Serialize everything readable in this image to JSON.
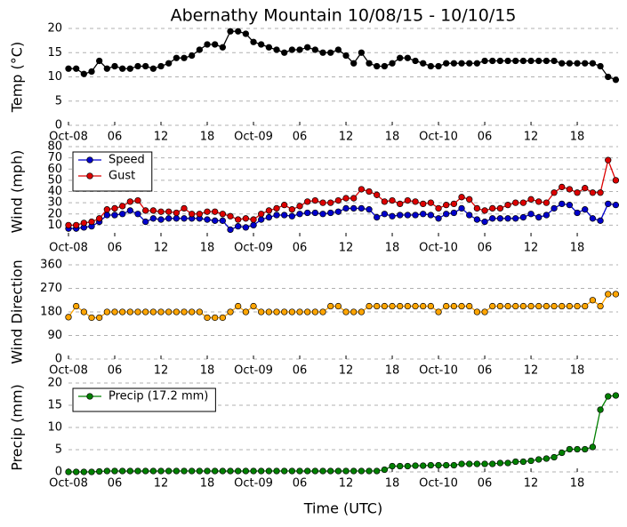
{
  "chart_data": [
    {
      "type": "line",
      "title": "Abernathy Mountain 10/08/15 - 10/10/15",
      "ylabel": "Temp (°C)",
      "x": [
        0,
        1,
        2,
        3,
        4,
        5,
        6,
        7,
        8,
        9,
        10,
        11,
        12,
        13,
        14,
        15,
        16,
        17,
        18,
        19,
        20,
        21,
        22,
        23,
        24,
        25,
        26,
        27,
        28,
        29,
        30,
        31,
        32,
        33,
        34,
        35,
        36,
        37,
        38,
        39,
        40,
        41,
        42,
        43,
        44,
        45,
        46,
        47,
        48,
        49,
        50,
        51,
        52,
        53,
        54,
        55,
        56,
        57,
        58,
        59,
        60,
        61,
        62,
        63,
        64,
        65,
        66,
        67,
        68,
        69,
        70,
        71
      ],
      "xlim": [
        0,
        71.3
      ],
      "xticks": [
        {
          "value": 0,
          "label": "Oct-08"
        },
        {
          "value": 6,
          "label": "06"
        },
        {
          "value": 12,
          "label": "12"
        },
        {
          "value": 18,
          "label": "18"
        },
        {
          "value": 24,
          "label": "Oct-09"
        },
        {
          "value": 30,
          "label": "06"
        },
        {
          "value": 36,
          "label": "12"
        },
        {
          "value": 42,
          "label": "18"
        },
        {
          "value": 48,
          "label": "Oct-10"
        },
        {
          "value": 54,
          "label": "06"
        },
        {
          "value": 60,
          "label": "12"
        },
        {
          "value": 66,
          "label": "18"
        }
      ],
      "ylim": [
        0,
        20
      ],
      "yticks": [
        0,
        5,
        10,
        15,
        20
      ],
      "grid": true,
      "series": [
        {
          "color": "#000000",
          "values": [
            11.7,
            11.7,
            10.6,
            11.1,
            13.3,
            11.7,
            12.2,
            11.7,
            11.7,
            12.2,
            12.2,
            11.7,
            12.2,
            12.8,
            13.9,
            13.9,
            14.4,
            15.6,
            16.7,
            16.7,
            16.1,
            19.4,
            19.4,
            18.9,
            17.2,
            16.7,
            16.1,
            15.6,
            15.0,
            15.6,
            15.6,
            16.1,
            15.6,
            15.0,
            15.0,
            15.6,
            14.4,
            12.8,
            15.0,
            12.8,
            12.2,
            12.2,
            12.8,
            13.9,
            13.9,
            13.3,
            12.8,
            12.2,
            12.2,
            12.8,
            12.8,
            12.8,
            12.8,
            12.8,
            13.3,
            13.3,
            13.3,
            13.3,
            13.3,
            13.3,
            13.3,
            13.3,
            13.3,
            13.3,
            12.8,
            12.8,
            12.8,
            12.8,
            12.8,
            12.2,
            10.0,
            9.4
          ]
        }
      ]
    },
    {
      "type": "line",
      "ylabel": "Wind (mph)",
      "legend": "upper left",
      "x": [
        0,
        1,
        2,
        3,
        4,
        5,
        6,
        7,
        8,
        9,
        10,
        11,
        12,
        13,
        14,
        15,
        16,
        17,
        18,
        19,
        20,
        21,
        22,
        23,
        24,
        25,
        26,
        27,
        28,
        29,
        30,
        31,
        32,
        33,
        34,
        35,
        36,
        37,
        38,
        39,
        40,
        41,
        42,
        43,
        44,
        45,
        46,
        47,
        48,
        49,
        50,
        51,
        52,
        53,
        54,
        55,
        56,
        57,
        58,
        59,
        60,
        61,
        62,
        63,
        64,
        65,
        66,
        67,
        68,
        69,
        70,
        71
      ],
      "xlim": [
        0,
        71.3
      ],
      "xticks": [
        {
          "value": 0,
          "label": "Oct-08"
        },
        {
          "value": 6,
          "label": "06"
        },
        {
          "value": 12,
          "label": "12"
        },
        {
          "value": 18,
          "label": "18"
        },
        {
          "value": 24,
          "label": "Oct-09"
        },
        {
          "value": 30,
          "label": "06"
        },
        {
          "value": 36,
          "label": "12"
        },
        {
          "value": 42,
          "label": "18"
        },
        {
          "value": 48,
          "label": "Oct-10"
        },
        {
          "value": 54,
          "label": "06"
        },
        {
          "value": 60,
          "label": "12"
        },
        {
          "value": 66,
          "label": "18"
        }
      ],
      "ylim": [
        0,
        80
      ],
      "yticks": [
        10,
        20,
        30,
        40,
        50,
        60,
        70,
        80
      ],
      "grid": true,
      "series": [
        {
          "name": "Speed",
          "color": "#0000cc",
          "values": [
            7,
            7,
            8,
            9,
            13,
            19,
            19,
            20,
            23,
            20,
            13,
            16,
            15,
            16,
            16,
            16,
            16,
            16,
            15,
            14,
            14,
            6,
            9,
            8,
            10,
            15,
            17,
            19,
            19,
            18,
            20,
            21,
            21,
            20,
            21,
            22,
            25,
            25,
            25,
            24,
            17,
            20,
            18,
            19,
            19,
            19,
            20,
            19,
            16,
            20,
            21,
            25,
            19,
            15,
            13,
            16,
            16,
            16,
            16,
            17,
            20,
            17,
            19,
            25,
            29,
            28,
            21,
            24,
            16,
            14,
            29,
            28
          ]
        },
        {
          "name": "Gust",
          "color": "#dd0000",
          "values": [
            10,
            10,
            12,
            13,
            16,
            24,
            25,
            27,
            31,
            32,
            23,
            23,
            22,
            22,
            21,
            25,
            20,
            20,
            22,
            22,
            20,
            18,
            15,
            16,
            15,
            20,
            23,
            25,
            28,
            24,
            27,
            31,
            32,
            30,
            30,
            32,
            34,
            34,
            42,
            40,
            37,
            31,
            32,
            29,
            32,
            31,
            29,
            30,
            25,
            28,
            29,
            35,
            33,
            25,
            23,
            25,
            25,
            28,
            30,
            30,
            33,
            31,
            30,
            39,
            44,
            42,
            39,
            43,
            39,
            39,
            68,
            50
          ]
        }
      ]
    },
    {
      "type": "line",
      "ylabel": "Wind Direction",
      "x": [
        0,
        1,
        2,
        3,
        4,
        5,
        6,
        7,
        8,
        9,
        10,
        11,
        12,
        13,
        14,
        15,
        16,
        17,
        18,
        19,
        20,
        21,
        22,
        23,
        24,
        25,
        26,
        27,
        28,
        29,
        30,
        31,
        32,
        33,
        34,
        35,
        36,
        37,
        38,
        39,
        40,
        41,
        42,
        43,
        44,
        45,
        46,
        47,
        48,
        49,
        50,
        51,
        52,
        53,
        54,
        55,
        56,
        57,
        58,
        59,
        60,
        61,
        62,
        63,
        64,
        65,
        66,
        67,
        68,
        69,
        70,
        71
      ],
      "xlim": [
        0,
        71.3
      ],
      "xticks": [
        {
          "value": 0,
          "label": "Oct-08"
        },
        {
          "value": 6,
          "label": "06"
        },
        {
          "value": 12,
          "label": "12"
        },
        {
          "value": 18,
          "label": "18"
        },
        {
          "value": 24,
          "label": "Oct-09"
        },
        {
          "value": 30,
          "label": "06"
        },
        {
          "value": 36,
          "label": "12"
        },
        {
          "value": 42,
          "label": "18"
        },
        {
          "value": 48,
          "label": "Oct-10"
        },
        {
          "value": 54,
          "label": "06"
        },
        {
          "value": 60,
          "label": "12"
        },
        {
          "value": 66,
          "label": "18"
        }
      ],
      "ylim": [
        0,
        360
      ],
      "yticks": [
        0,
        90,
        180,
        270,
        360
      ],
      "grid": true,
      "series": [
        {
          "color": "#ffa500",
          "values": [
            160,
            202,
            180,
            158,
            158,
            180,
            180,
            180,
            180,
            180,
            180,
            180,
            180,
            180,
            180,
            180,
            180,
            180,
            158,
            158,
            158,
            180,
            202,
            180,
            202,
            180,
            180,
            180,
            180,
            180,
            180,
            180,
            180,
            180,
            202,
            202,
            180,
            180,
            180,
            202,
            202,
            202,
            202,
            202,
            202,
            202,
            202,
            202,
            180,
            202,
            202,
            202,
            202,
            180,
            180,
            202,
            202,
            202,
            202,
            202,
            202,
            202,
            202,
            202,
            202,
            202,
            202,
            202,
            225,
            202,
            248,
            248
          ]
        }
      ]
    },
    {
      "type": "line",
      "ylabel": "Precip (mm)",
      "xlabel": "Time (UTC)",
      "legend": "upper left",
      "x": [
        0,
        1,
        2,
        3,
        4,
        5,
        6,
        7,
        8,
        9,
        10,
        11,
        12,
        13,
        14,
        15,
        16,
        17,
        18,
        19,
        20,
        21,
        22,
        23,
        24,
        25,
        26,
        27,
        28,
        29,
        30,
        31,
        32,
        33,
        34,
        35,
        36,
        37,
        38,
        39,
        40,
        41,
        42,
        43,
        44,
        45,
        46,
        47,
        48,
        49,
        50,
        51,
        52,
        53,
        54,
        55,
        56,
        57,
        58,
        59,
        60,
        61,
        62,
        63,
        64,
        65,
        66,
        67,
        68,
        69,
        70,
        71
      ],
      "xlim": [
        0,
        71.3
      ],
      "xticks": [
        {
          "value": 0,
          "label": "Oct-08"
        },
        {
          "value": 6,
          "label": "06"
        },
        {
          "value": 12,
          "label": "12"
        },
        {
          "value": 18,
          "label": "18"
        },
        {
          "value": 24,
          "label": "Oct-09"
        },
        {
          "value": 30,
          "label": "06"
        },
        {
          "value": 36,
          "label": "12"
        },
        {
          "value": 42,
          "label": "18"
        },
        {
          "value": 48,
          "label": "Oct-10"
        },
        {
          "value": 54,
          "label": "06"
        },
        {
          "value": 60,
          "label": "12"
        },
        {
          "value": 66,
          "label": "18"
        }
      ],
      "ylim": [
        0,
        20
      ],
      "yticks": [
        0,
        5,
        10,
        15,
        20
      ],
      "grid": true,
      "series": [
        {
          "name": "Precip (17.2 mm)",
          "color": "#008000",
          "values": [
            0,
            0,
            0,
            0,
            0.1,
            0.2,
            0.2,
            0.2,
            0.2,
            0.2,
            0.2,
            0.2,
            0.2,
            0.2,
            0.2,
            0.2,
            0.2,
            0.2,
            0.2,
            0.2,
            0.2,
            0.2,
            0.2,
            0.2,
            0.2,
            0.2,
            0.2,
            0.2,
            0.2,
            0.2,
            0.2,
            0.2,
            0.2,
            0.2,
            0.2,
            0.2,
            0.2,
            0.2,
            0.2,
            0.2,
            0.2,
            0.5,
            1.3,
            1.3,
            1.3,
            1.4,
            1.4,
            1.5,
            1.5,
            1.5,
            1.5,
            1.8,
            1.8,
            1.8,
            1.8,
            1.8,
            2.0,
            2.0,
            2.3,
            2.3,
            2.5,
            2.8,
            3.0,
            3.3,
            4.3,
            5.1,
            5.1,
            5.1,
            5.6,
            14.0,
            17.0,
            17.2
          ]
        }
      ]
    }
  ]
}
